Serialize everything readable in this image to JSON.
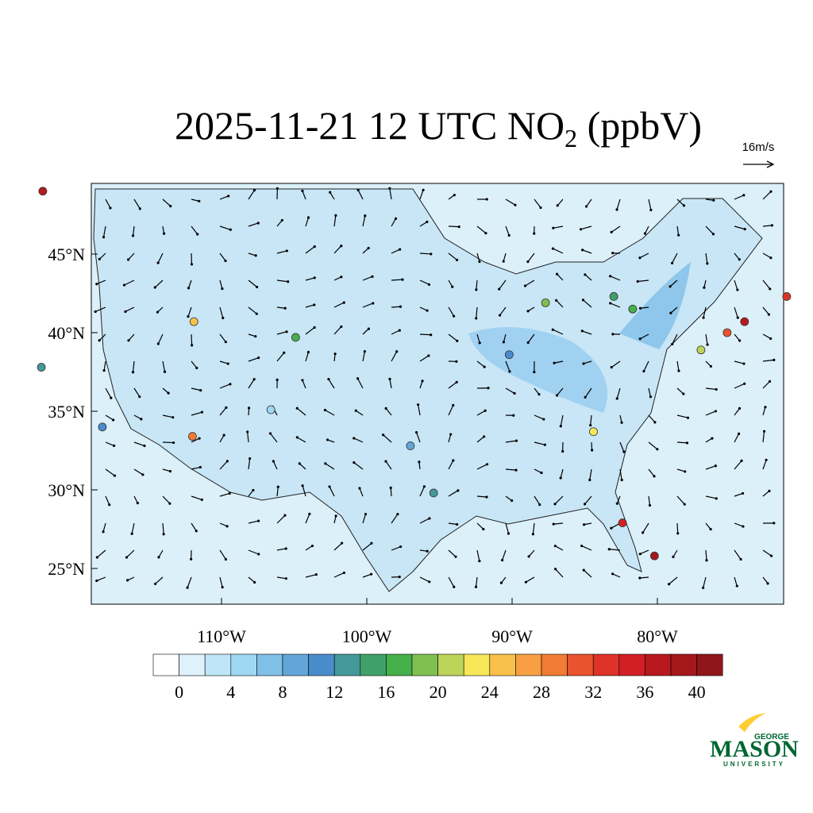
{
  "title": {
    "main": "2025-11-21 12 UTC NO",
    "sub": "2",
    "rest": " (ppbV)"
  },
  "wind_scale": "16m/s",
  "lat_ticks": [
    {
      "value": 45,
      "label": "45°N"
    },
    {
      "value": 40,
      "label": "40°N"
    },
    {
      "value": 35,
      "label": "35°N"
    },
    {
      "value": 30,
      "label": "30°N"
    },
    {
      "value": 25,
      "label": "25°N"
    }
  ],
  "lon_ticks": [
    {
      "value": -110,
      "label": "110°W"
    },
    {
      "value": -100,
      "label": "100°W"
    },
    {
      "value": -90,
      "label": "90°W"
    },
    {
      "value": -80,
      "label": "80°W"
    }
  ],
  "colorbar": {
    "step": 2,
    "colors": [
      "#ffffff",
      "#dff1fb",
      "#bfe6f8",
      "#9fd8f3",
      "#7fc0e6",
      "#62a5d9",
      "#4a8ccb",
      "#44999a",
      "#3fa06a",
      "#46b04b",
      "#80c050",
      "#bcd459",
      "#f7e85a",
      "#f8c24a",
      "#f7a043",
      "#f27b35",
      "#e9532e",
      "#dd3328",
      "#d21f26",
      "#b8191f",
      "#a4181c",
      "#8f161b"
    ],
    "ticks": [
      0,
      4,
      8,
      12,
      16,
      20,
      24,
      28,
      32,
      36,
      40
    ]
  },
  "stations": [
    {
      "lon": -74.0,
      "lat": 40.7,
      "value": 36
    },
    {
      "lon": -80.2,
      "lat": 25.8,
      "value": 38
    },
    {
      "lon": -75.2,
      "lat": 40.0,
      "value": 30
    },
    {
      "lon": -71.1,
      "lat": 42.3,
      "value": 32
    },
    {
      "lon": -112.0,
      "lat": 33.4,
      "value": 28
    },
    {
      "lon": -122.3,
      "lat": 49.0,
      "value": 36
    },
    {
      "lon": -82.4,
      "lat": 27.9,
      "value": 34
    },
    {
      "lon": -87.7,
      "lat": 41.9,
      "value": 18
    },
    {
      "lon": -83.0,
      "lat": 42.3,
      "value": 14
    },
    {
      "lon": -118.2,
      "lat": 34.0,
      "value": 10
    },
    {
      "lon": -111.9,
      "lat": 40.7,
      "value": 24
    },
    {
      "lon": -104.9,
      "lat": 39.7,
      "value": 16
    },
    {
      "lon": -95.4,
      "lat": 29.8,
      "value": 12
    },
    {
      "lon": -84.4,
      "lat": 33.7,
      "value": 22
    },
    {
      "lon": -77.0,
      "lat": 38.9,
      "value": 20
    },
    {
      "lon": -122.4,
      "lat": 37.8,
      "value": 12
    },
    {
      "lon": -97.0,
      "lat": 32.8,
      "value": 8
    },
    {
      "lon": -90.2,
      "lat": 38.6,
      "value": 10
    },
    {
      "lon": -106.6,
      "lat": 35.1,
      "value": 4
    },
    {
      "lon": -81.7,
      "lat": 41.5,
      "value": 16
    }
  ],
  "logo": {
    "top": "GEORGE",
    "main": "MASON",
    "bottom": "UNIVERSITY"
  }
}
